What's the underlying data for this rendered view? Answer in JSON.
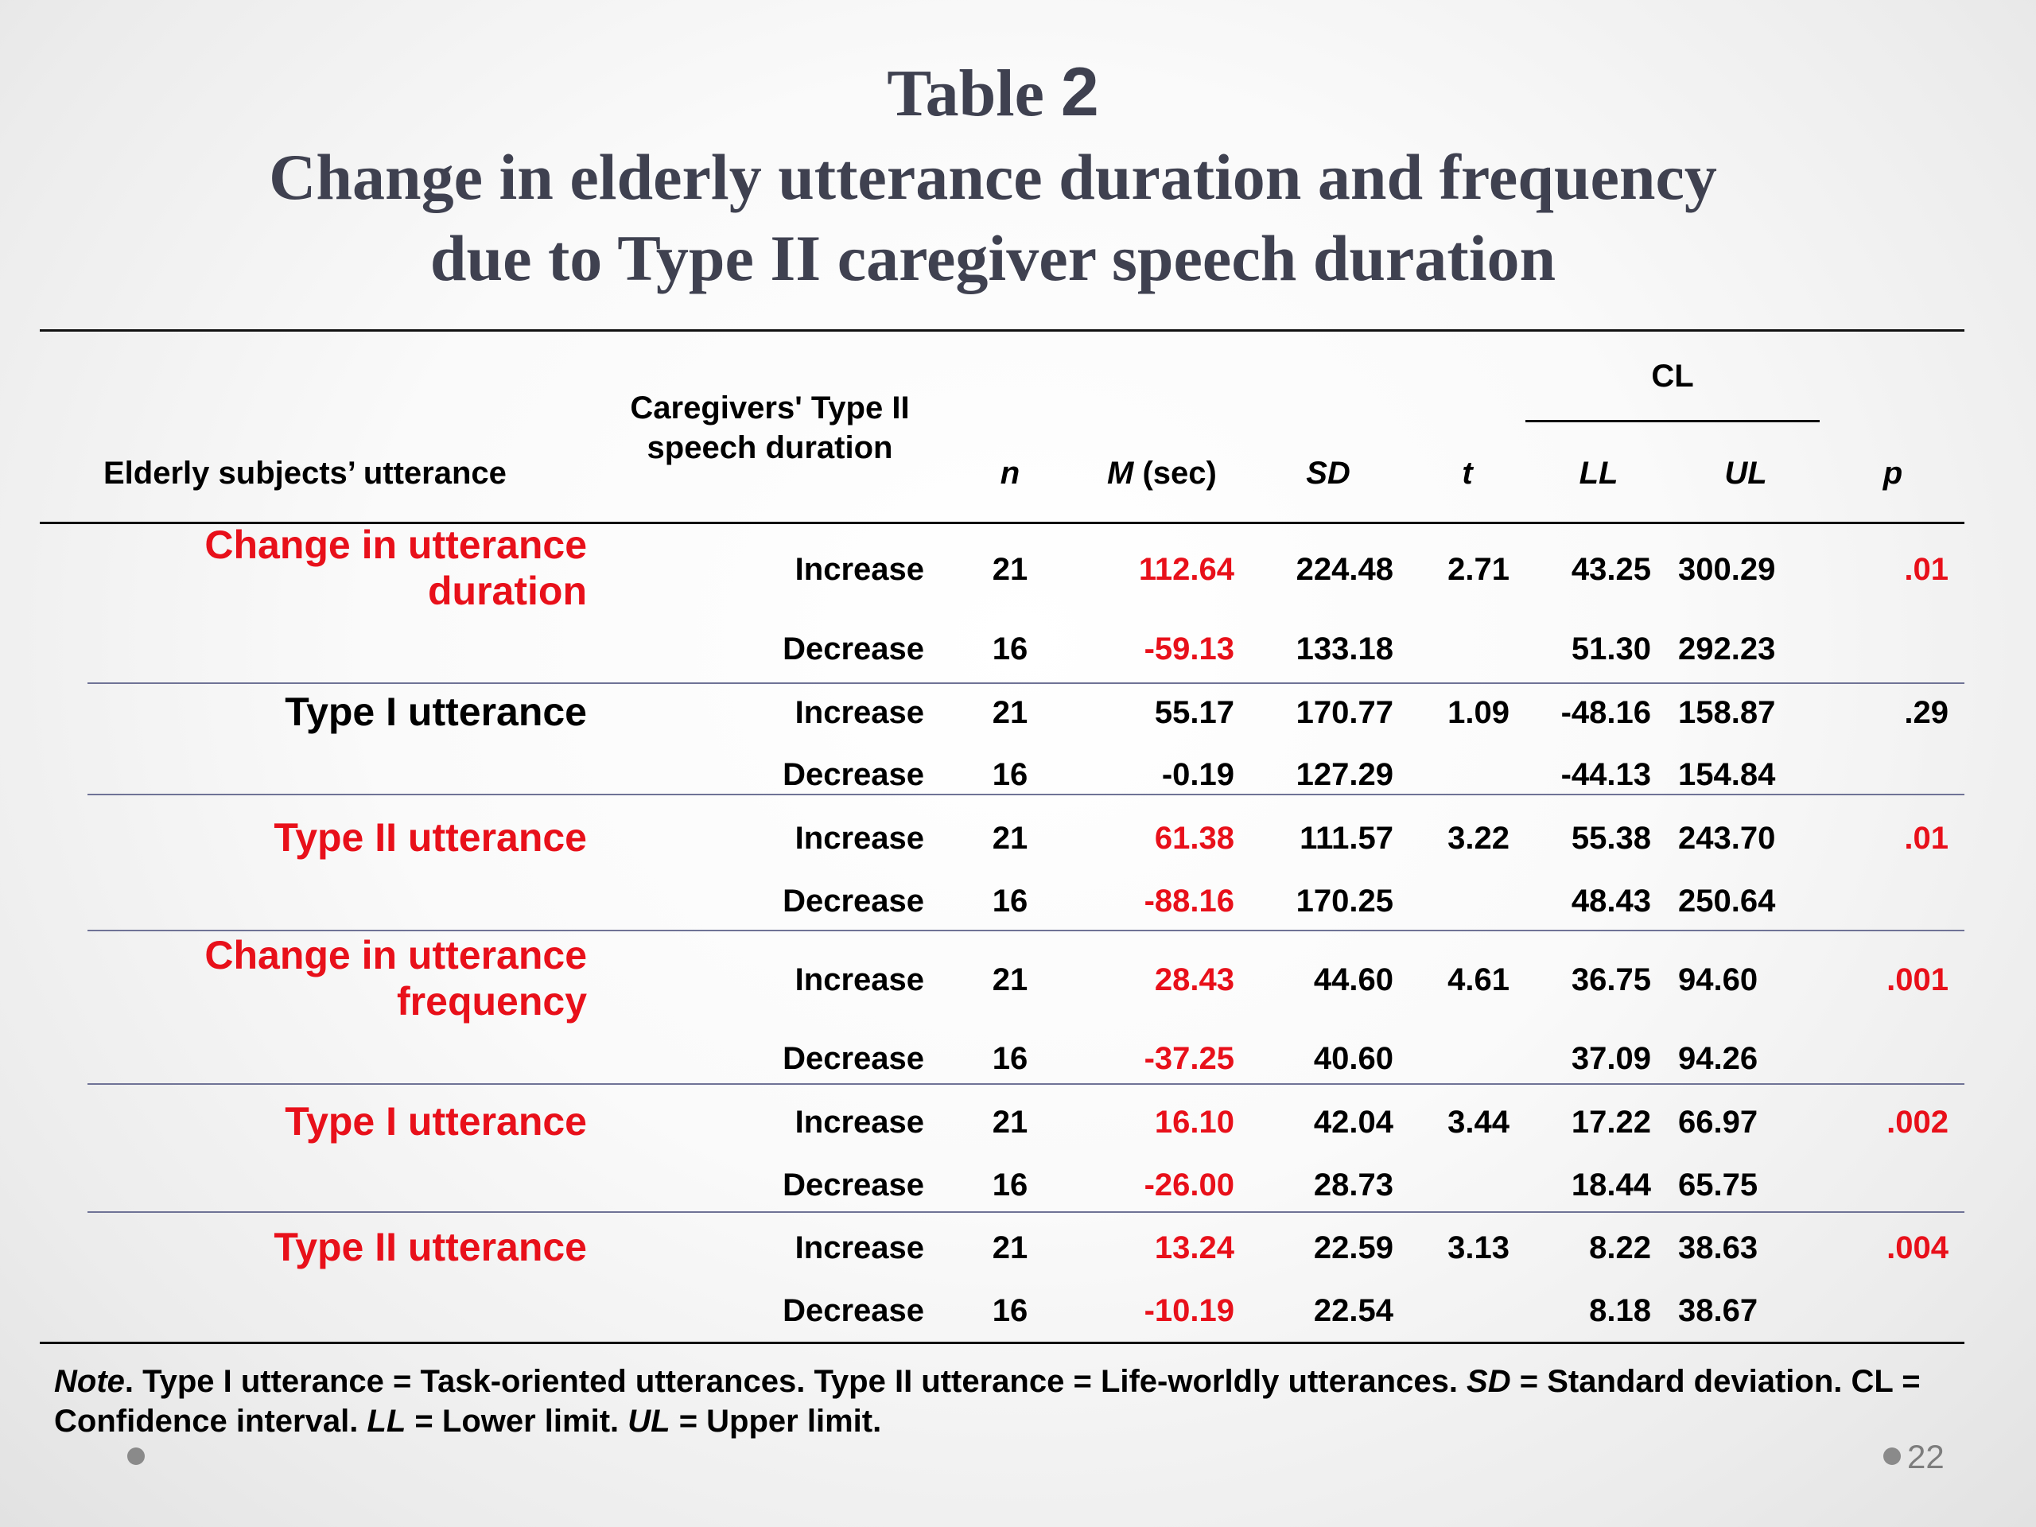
{
  "title": {
    "word": "Table",
    "number": "2",
    "line2": "Change in elderly utterance duration and frequency",
    "line3": "due to Type II caregiver speech duration"
  },
  "table": {
    "headers": {
      "elderly": "Elderly subjects’ utterance",
      "caregiver_line1": "Caregivers' Type II",
      "caregiver_line2": "speech duration",
      "n": "n",
      "m": "M",
      "m_unit": " (sec)",
      "sd": "SD",
      "t": "t",
      "cl": "CL",
      "ll": "LL",
      "ul": "UL",
      "p": "p"
    },
    "groups": [
      {
        "label_line1": "Change in utterance",
        "label_line2": "duration",
        "highlight": true,
        "t": "2.71",
        "p": ".01",
        "rows": [
          {
            "direction": "Increase",
            "n": "21",
            "m": "112.64",
            "sd": "224.48",
            "ll": "43.25",
            "ul": "300.29"
          },
          {
            "direction": "Decrease",
            "n": "16",
            "m": "-59.13",
            "sd": "133.18",
            "ll": "51.30",
            "ul": "292.23"
          }
        ]
      },
      {
        "label_line1": "Type I utterance",
        "label_line2": "",
        "highlight": false,
        "t": "1.09",
        "p": ".29",
        "rows": [
          {
            "direction": "Increase",
            "n": "21",
            "m": "55.17",
            "sd": "170.77",
            "ll": "-48.16",
            "ul": "158.87"
          },
          {
            "direction": "Decrease",
            "n": "16",
            "m": "-0.19",
            "sd": "127.29",
            "ll": "-44.13",
            "ul": "154.84"
          }
        ]
      },
      {
        "label_line1": "Type II utterance",
        "label_line2": "",
        "highlight": true,
        "t": "3.22",
        "p": ".01",
        "rows": [
          {
            "direction": "Increase",
            "n": "21",
            "m": "61.38",
            "sd": "111.57",
            "ll": "55.38",
            "ul": "243.70"
          },
          {
            "direction": "Decrease",
            "n": "16",
            "m": "-88.16",
            "sd": "170.25",
            "ll": "48.43",
            "ul": "250.64"
          }
        ]
      },
      {
        "label_line1": "Change in utterance",
        "label_line2": "frequency",
        "highlight": true,
        "t": "4.61",
        "p": ".001",
        "rows": [
          {
            "direction": "Increase",
            "n": "21",
            "m": "28.43",
            "sd": "44.60",
            "ll": "36.75",
            "ul": "94.60"
          },
          {
            "direction": "Decrease",
            "n": "16",
            "m": "-37.25",
            "sd": "40.60",
            "ll": "37.09",
            "ul": "94.26"
          }
        ]
      },
      {
        "label_line1": "Type I utterance",
        "label_line2": "",
        "highlight": true,
        "t": "3.44",
        "p": ".002",
        "rows": [
          {
            "direction": "Increase",
            "n": "21",
            "m": "16.10",
            "sd": "42.04",
            "ll": "17.22",
            "ul": "66.97"
          },
          {
            "direction": "Decrease",
            "n": "16",
            "m": "-26.00",
            "sd": "28.73",
            "ll": "18.44",
            "ul": "65.75"
          }
        ]
      },
      {
        "label_line1": "Type II utterance",
        "label_line2": "",
        "highlight": true,
        "t": "3.13",
        "p": ".004",
        "rows": [
          {
            "direction": "Increase",
            "n": "21",
            "m": "13.24",
            "sd": "22.59",
            "ll": "8.22",
            "ul": "38.63"
          },
          {
            "direction": "Decrease",
            "n": "16",
            "m": "-10.19",
            "sd": "22.54",
            "ll": "8.18",
            "ul": "38.67"
          }
        ]
      }
    ]
  },
  "note": {
    "lead": "Note",
    "p1": ". Type I utterance = Task-oriented utterances. Type II utterance = Life-worldly utterances. ",
    "sd": "SD",
    "p2": " = Standard deviation. CL = Confidence interval. ",
    "ll": "LL",
    "p3": " = Lower limit. ",
    "ul": "UL",
    "p4": " = Upper limit."
  },
  "page_number": "22",
  "colors": {
    "title": "#3f4150",
    "highlight": "#e8101a",
    "thin_rule": "#6f7396"
  }
}
